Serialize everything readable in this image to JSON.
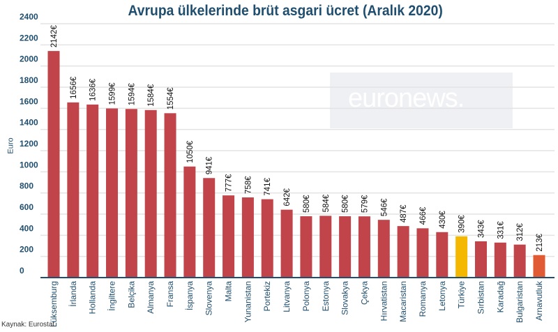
{
  "chart_data": {
    "type": "bar",
    "title": "Avrupa ülkelerinde brüt asgari ücret  (Aralık 2020)",
    "ylabel": "Euro",
    "xlabel": "",
    "ylim": [
      0,
      2400
    ],
    "yticks": [
      0,
      200,
      400,
      600,
      800,
      1000,
      1200,
      1400,
      1600,
      1800,
      2000,
      2200,
      2400
    ],
    "grid": true,
    "categories": [
      "Lüksemburg",
      "İrlanda",
      "Hollanda",
      "İngiltere",
      "Belçika",
      "Almanya",
      "Fransa",
      "İspanya",
      "Slovenya",
      "Malta",
      "Yunanistan",
      "Portekiz",
      "Litvanya",
      "Polonya",
      "Estonya",
      "Slovakya",
      "Çekya",
      "Hırvatistan",
      "Macaristan",
      "Romanya",
      "Letonya",
      "Türkiye",
      "Sırbistan",
      "Karadağ",
      "Bulgaristan",
      "Arnavutluk"
    ],
    "values": [
      2142,
      1656,
      1636,
      1599,
      1594,
      1584,
      1554,
      1050,
      941,
      777,
      758,
      741,
      642,
      580,
      584,
      580,
      579,
      546,
      487,
      466,
      430,
      390,
      343,
      331,
      312,
      213
    ],
    "value_labels": [
      "2142€",
      "1656€",
      "1636€",
      "1599€",
      "1594€",
      "1584€",
      "1554€",
      "1050€",
      "941€",
      "777€",
      "758€",
      "741€",
      "642€",
      "580€",
      "584€",
      "580€",
      "579€",
      "546€",
      "487€",
      "466€",
      "430€",
      "390€",
      "343€",
      "331€",
      "312€",
      "213€"
    ],
    "colors": {
      "default": "#c0444a",
      "Türkiye": "#f5b800",
      "Arnavutluk": "#e05a33",
      "text": "#1f4e6e"
    }
  },
  "watermark": "euronews.",
  "source": "Kaynak: Eurostat"
}
